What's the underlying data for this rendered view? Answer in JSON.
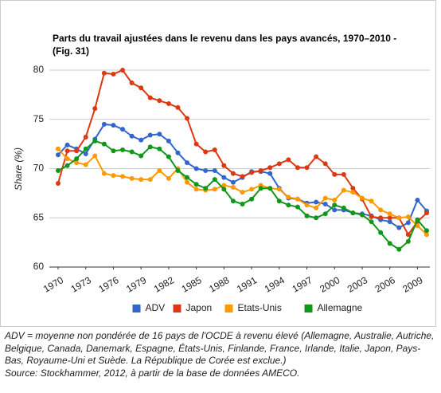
{
  "chart_data": {
    "type": "line",
    "title": "Parts du travail ajustées dans le revenu dans les pays avancés, 1970–2010 - (Fig. 31)",
    "y_label": "Share (%)",
    "x": [
      1970,
      1971,
      1972,
      1973,
      1974,
      1975,
      1976,
      1977,
      1978,
      1979,
      1980,
      1981,
      1982,
      1983,
      1984,
      1985,
      1986,
      1987,
      1988,
      1989,
      1990,
      1991,
      1992,
      1993,
      1994,
      1995,
      1996,
      1997,
      1998,
      1999,
      2000,
      2001,
      2002,
      2003,
      2004,
      2005,
      2006,
      2007,
      2008,
      2009,
      2010
    ],
    "xlim": [
      1970,
      2010
    ],
    "xticks": [
      1970,
      1973,
      1976,
      1979,
      1982,
      1985,
      1988,
      1991,
      1994,
      1997,
      2000,
      2003,
      2006,
      2009
    ],
    "ylim": [
      60,
      80
    ],
    "yticks": [
      60,
      65,
      70,
      75,
      80
    ],
    "grid": true,
    "legend": "bottom",
    "series": [
      {
        "name": "ADV",
        "color": "#3366cc",
        "values": [
          71.4,
          72.4,
          72.0,
          71.5,
          73.0,
          74.5,
          74.4,
          74.0,
          73.3,
          72.9,
          73.4,
          73.5,
          72.8,
          71.6,
          70.6,
          70.0,
          69.8,
          69.8,
          69.1,
          68.6,
          69.1,
          69.7,
          69.7,
          69.5,
          68.0,
          67.0,
          66.9,
          66.5,
          66.6,
          66.4,
          65.8,
          65.8,
          65.5,
          65.4,
          65.2,
          64.8,
          64.6,
          64.0,
          64.5,
          66.8,
          65.7
        ]
      },
      {
        "name": "Japon",
        "color": "#dc3912",
        "values": [
          68.5,
          71.8,
          71.8,
          73.2,
          76.1,
          79.7,
          79.6,
          80.0,
          78.7,
          78.2,
          77.2,
          76.9,
          76.6,
          76.2,
          75.1,
          72.5,
          71.7,
          71.9,
          70.3,
          69.5,
          69.2,
          69.6,
          69.8,
          70.1,
          70.5,
          70.9,
          70.1,
          70.1,
          71.2,
          70.5,
          69.4,
          69.4,
          68.0,
          66.9,
          65.1,
          65.0,
          65.0,
          65.0,
          63.3,
          64.6,
          65.5
        ]
      },
      {
        "name": "Etats-Unis",
        "color": "#ff9900",
        "values": [
          72.0,
          71.0,
          70.6,
          70.4,
          71.3,
          69.5,
          69.3,
          69.2,
          69.0,
          68.9,
          68.9,
          69.8,
          69.0,
          70.0,
          68.6,
          67.9,
          67.8,
          67.9,
          68.3,
          68.1,
          67.6,
          67.9,
          68.3,
          68.0,
          67.9,
          67.1,
          66.9,
          66.3,
          66.0,
          67.0,
          66.8,
          67.8,
          67.6,
          67.0,
          66.7,
          65.8,
          65.4,
          65.0,
          65.1,
          64.2,
          63.3
        ]
      },
      {
        "name": "Allemagne",
        "color": "#109618",
        "values": [
          69.8,
          70.3,
          71.0,
          72.0,
          72.8,
          72.5,
          71.8,
          71.9,
          71.7,
          71.3,
          72.2,
          72.0,
          71.2,
          69.8,
          69.1,
          68.4,
          68.0,
          68.9,
          67.9,
          66.7,
          66.4,
          66.9,
          68.0,
          68.0,
          66.7,
          66.3,
          66.1,
          65.2,
          65.0,
          65.4,
          66.3,
          66.0,
          65.5,
          65.3,
          64.6,
          63.5,
          62.4,
          61.8,
          62.6,
          64.8,
          63.7
        ]
      }
    ]
  },
  "note": "ADV = moyenne non pondérée de 16 pays de l'OCDE à revenu élevé (Allemagne, Australie, Autriche, Belgique, Canada, Danemark, Espagne, États-Unis, Finlande, France, Irlande, Italie, Japon, Pays-Bas, Royaume-Uni et Suède. La République de Corée est exclue.)",
  "source": "Source: Stockhammer, 2012, à partir de la base de données AMECO."
}
